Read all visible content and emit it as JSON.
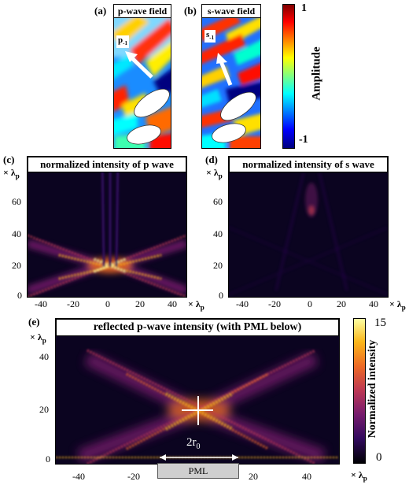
{
  "figure": {
    "a": {
      "label": "(a)",
      "title": "p-wave field",
      "arrow_main": "p",
      "arrow_sub": "-1"
    },
    "b": {
      "label": "(b)",
      "title": "s-wave field",
      "arrow_main": "s",
      "arrow_sub": "-1"
    },
    "colorbar_top": {
      "label": "Amplitude",
      "max": "1",
      "min": "-1"
    },
    "c": {
      "label": "(c)",
      "title": "normalized intensity of p wave"
    },
    "d": {
      "label": "(d)",
      "title": "normalized intensity of s wave"
    },
    "e": {
      "label": "(e)",
      "title": "reflected p-wave intensity (with PML below)",
      "annot_main": "2r",
      "annot_sub": "0",
      "pml": "PML"
    },
    "colorbar_bottom": {
      "label": "Normalized intensity",
      "max": "15",
      "min": "0"
    },
    "axis_unit_prefix": "× λ",
    "axis_unit_sub": "p"
  },
  "colors": {
    "jet": [
      "#00007f",
      "#0000ff",
      "#00ffff",
      "#ffff00",
      "#ff0000",
      "#7f0000"
    ],
    "inferno": [
      "#000004",
      "#320a5e",
      "#781c6d",
      "#bb3754",
      "#ed6925",
      "#fbb61a",
      "#fcffa4"
    ],
    "background_dark": "#0b0420"
  },
  "chart_data": [
    {
      "type": "heatmap",
      "title": "normalized intensity of p wave",
      "x_ticks": [
        "-40",
        "-20",
        "0",
        "20",
        "40"
      ],
      "y_ticks": [
        "0",
        "20",
        "40",
        "60"
      ],
      "xlim": [
        -50,
        50
      ],
      "ylim": [
        0,
        75
      ]
    },
    {
      "type": "heatmap",
      "title": "normalized intensity of s wave",
      "x_ticks": [
        "-40",
        "-20",
        "0",
        "20",
        "40"
      ],
      "y_ticks": [
        "0",
        "20",
        "40",
        "60"
      ],
      "xlim": [
        -50,
        50
      ],
      "ylim": [
        0,
        75
      ]
    },
    {
      "type": "heatmap",
      "title": "reflected p-wave intensity (with PML below)",
      "x_ticks": [
        "-40",
        "-20",
        "0",
        "20",
        "40"
      ],
      "y_ticks": [
        "0",
        "20",
        "40"
      ],
      "xlim": [
        -50,
        50
      ],
      "ylim": [
        0,
        48
      ],
      "colorbar_range": [
        0,
        15
      ]
    }
  ]
}
